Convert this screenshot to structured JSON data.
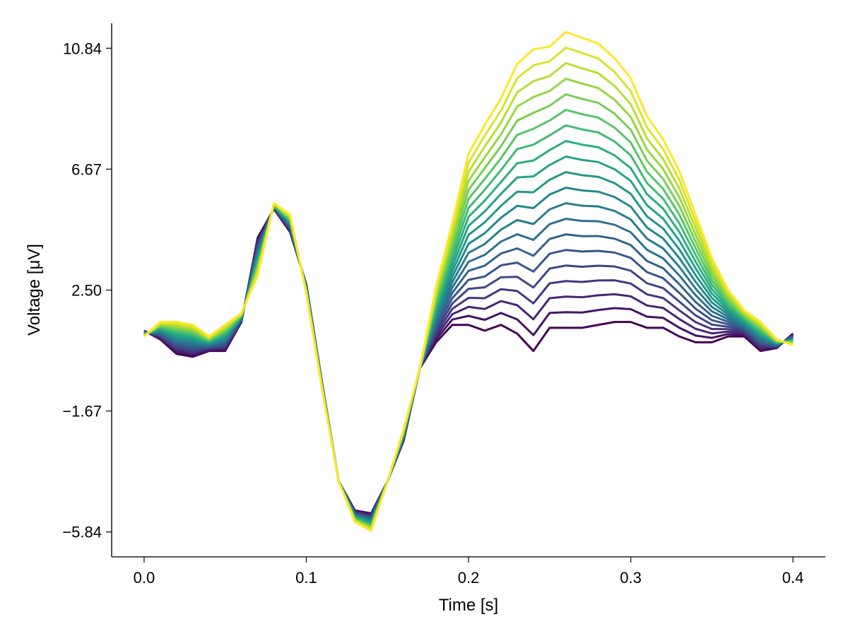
{
  "chart_data": {
    "type": "line",
    "title": "",
    "xlabel": "Time [s]",
    "ylabel": "Voltage [μV]",
    "xlim": [
      -0.02,
      0.42
    ],
    "ylim": [
      -6.7,
      11.7
    ],
    "xticks": [
      0.0,
      0.1,
      0.2,
      0.3,
      0.4
    ],
    "xtick_labels": [
      "0.0",
      "0.1",
      "0.2",
      "0.3",
      "0.4"
    ],
    "yticks": [
      10.84,
      6.67,
      2.5,
      -1.67,
      -5.84
    ],
    "ytick_labels": [
      "10.84",
      "6.67",
      "2.50",
      "−1.67",
      "−5.84"
    ],
    "grid": false,
    "legend": "none",
    "colormap": "viridis",
    "n_series": 20,
    "x": [
      0.0,
      0.01,
      0.02,
      0.03,
      0.04,
      0.05,
      0.06,
      0.07,
      0.08,
      0.09,
      0.1,
      0.11,
      0.12,
      0.13,
      0.14,
      0.15,
      0.16,
      0.17,
      0.18,
      0.19,
      0.2,
      0.21,
      0.22,
      0.23,
      0.24,
      0.25,
      0.26,
      0.27,
      0.28,
      0.29,
      0.3,
      0.31,
      0.32,
      0.33,
      0.34,
      0.35,
      0.36,
      0.37,
      0.38,
      0.39,
      0.4
    ],
    "series_first": [
      1.1,
      0.8,
      0.3,
      0.2,
      0.4,
      0.4,
      1.4,
      4.3,
      5.3,
      4.5,
      2.7,
      -0.8,
      -4.1,
      -5.1,
      -5.2,
      -4.1,
      -2.7,
      -0.2,
      0.7,
      1.3,
      1.3,
      1.1,
      1.3,
      1.0,
      0.4,
      1.2,
      1.2,
      1.2,
      1.3,
      1.4,
      1.4,
      1.2,
      1.2,
      0.9,
      0.7,
      0.7,
      0.9,
      0.9,
      0.4,
      0.5,
      1.0
    ],
    "series_last": [
      0.9,
      1.4,
      1.4,
      1.3,
      0.9,
      1.3,
      1.7,
      3.0,
      5.5,
      5.1,
      2.4,
      -1.0,
      -4.1,
      -5.5,
      -5.8,
      -4.1,
      -2.3,
      -0.2,
      2.6,
      4.8,
      7.2,
      8.2,
      9.1,
      10.3,
      10.8,
      10.9,
      11.4,
      11.2,
      11.0,
      10.5,
      9.8,
      8.5,
      7.7,
      6.6,
      5.1,
      3.6,
      2.5,
      1.8,
      1.4,
      0.8,
      0.6
    ]
  }
}
